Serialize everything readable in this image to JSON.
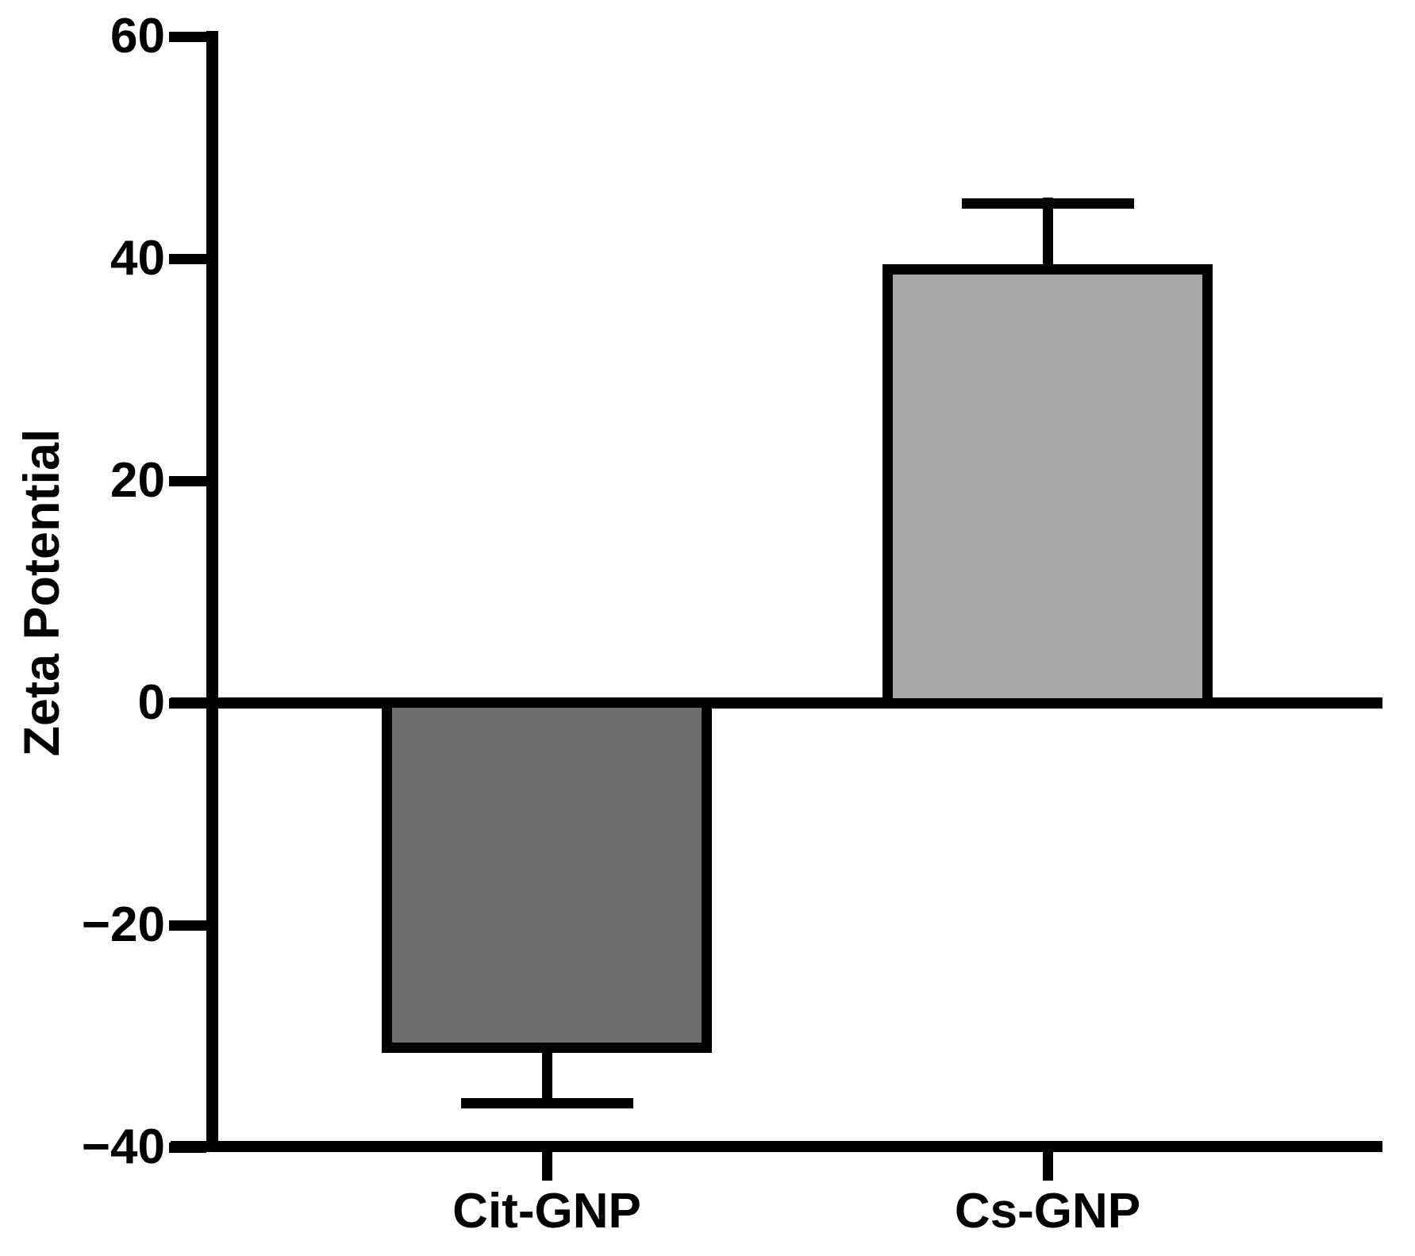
{
  "chart_data": {
    "type": "bar",
    "title": "",
    "xlabel": "",
    "ylabel": "Zeta Potential",
    "categories": [
      "Cit-GNP",
      "Cs-GNP"
    ],
    "values": [
      -31,
      39
    ],
    "errors": [
      5,
      6
    ],
    "error_style": "one-sided caps pointing away from zero",
    "bar_fill_colors": [
      "#6e6e6e",
      "#a8a8a8"
    ],
    "bar_border_color": "#000000",
    "axis_color": "#000000",
    "background_color": "#ffffff",
    "ylim": [
      -40,
      60
    ],
    "yticks": [
      60,
      40,
      20,
      0,
      -20,
      -40
    ],
    "ytick_labels": [
      "60",
      "40",
      "20",
      "0",
      "−20",
      "−40"
    ],
    "grid": false,
    "legend": null
  }
}
